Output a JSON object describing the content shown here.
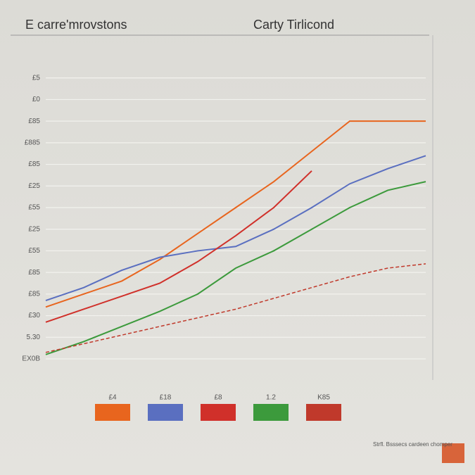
{
  "chart_data": {
    "type": "line",
    "title": "Carty Tirlicond",
    "subtitle": "E carre'mrovstons",
    "x": [
      0,
      1,
      2,
      3,
      4,
      5,
      6,
      7,
      8,
      9,
      10
    ],
    "xlim": [
      0,
      10
    ],
    "ylim": [
      0,
      14
    ],
    "yticks": [
      {
        "value": 0,
        "label": "EX0B"
      },
      {
        "value": 1,
        "label": "5.30"
      },
      {
        "value": 2,
        "label": "£30"
      },
      {
        "value": 3,
        "label": "£85"
      },
      {
        "value": 4,
        "label": "£85"
      },
      {
        "value": 5,
        "label": "£55"
      },
      {
        "value": 6,
        "label": "£25"
      },
      {
        "value": 7,
        "label": "£55"
      },
      {
        "value": 8,
        "label": "£25"
      },
      {
        "value": 9,
        "label": "£85"
      },
      {
        "value": 10,
        "label": "£885"
      },
      {
        "value": 11,
        "label": "£85"
      },
      {
        "value": 12,
        "label": "£0"
      },
      {
        "value": 13,
        "label": "£5"
      }
    ],
    "grid": true,
    "series": [
      {
        "name": "£4",
        "color": "#e8651e",
        "dash": false,
        "values": [
          2.4,
          3.0,
          3.6,
          4.6,
          5.8,
          7.0,
          8.2,
          9.6,
          11.0,
          11.0,
          11.0
        ]
      },
      {
        "name": "£18",
        "color": "#5a6fc0",
        "dash": false,
        "values": [
          2.7,
          3.3,
          4.1,
          4.7,
          5.0,
          5.2,
          6.0,
          7.0,
          8.1,
          8.8,
          9.4
        ]
      },
      {
        "name": "£8",
        "color": "#d0302a",
        "dash": false,
        "values": [
          1.7,
          2.3,
          2.9,
          3.5,
          4.5,
          5.7,
          7.0,
          8.7,
          null,
          null,
          null
        ]
      },
      {
        "name": "1.2",
        "color": "#3c9a3c",
        "dash": false,
        "values": [
          0.2,
          0.8,
          1.5,
          2.2,
          3.0,
          4.2,
          5.0,
          6.0,
          7.0,
          7.8,
          8.2
        ]
      },
      {
        "name": "K85",
        "color": "#c0392b",
        "dash": true,
        "values": [
          0.3,
          0.7,
          1.1,
          1.5,
          1.9,
          2.3,
          2.8,
          3.3,
          3.8,
          4.2,
          4.4
        ]
      }
    ],
    "note": "Strfl. Bsssecs cardeen chomper"
  }
}
